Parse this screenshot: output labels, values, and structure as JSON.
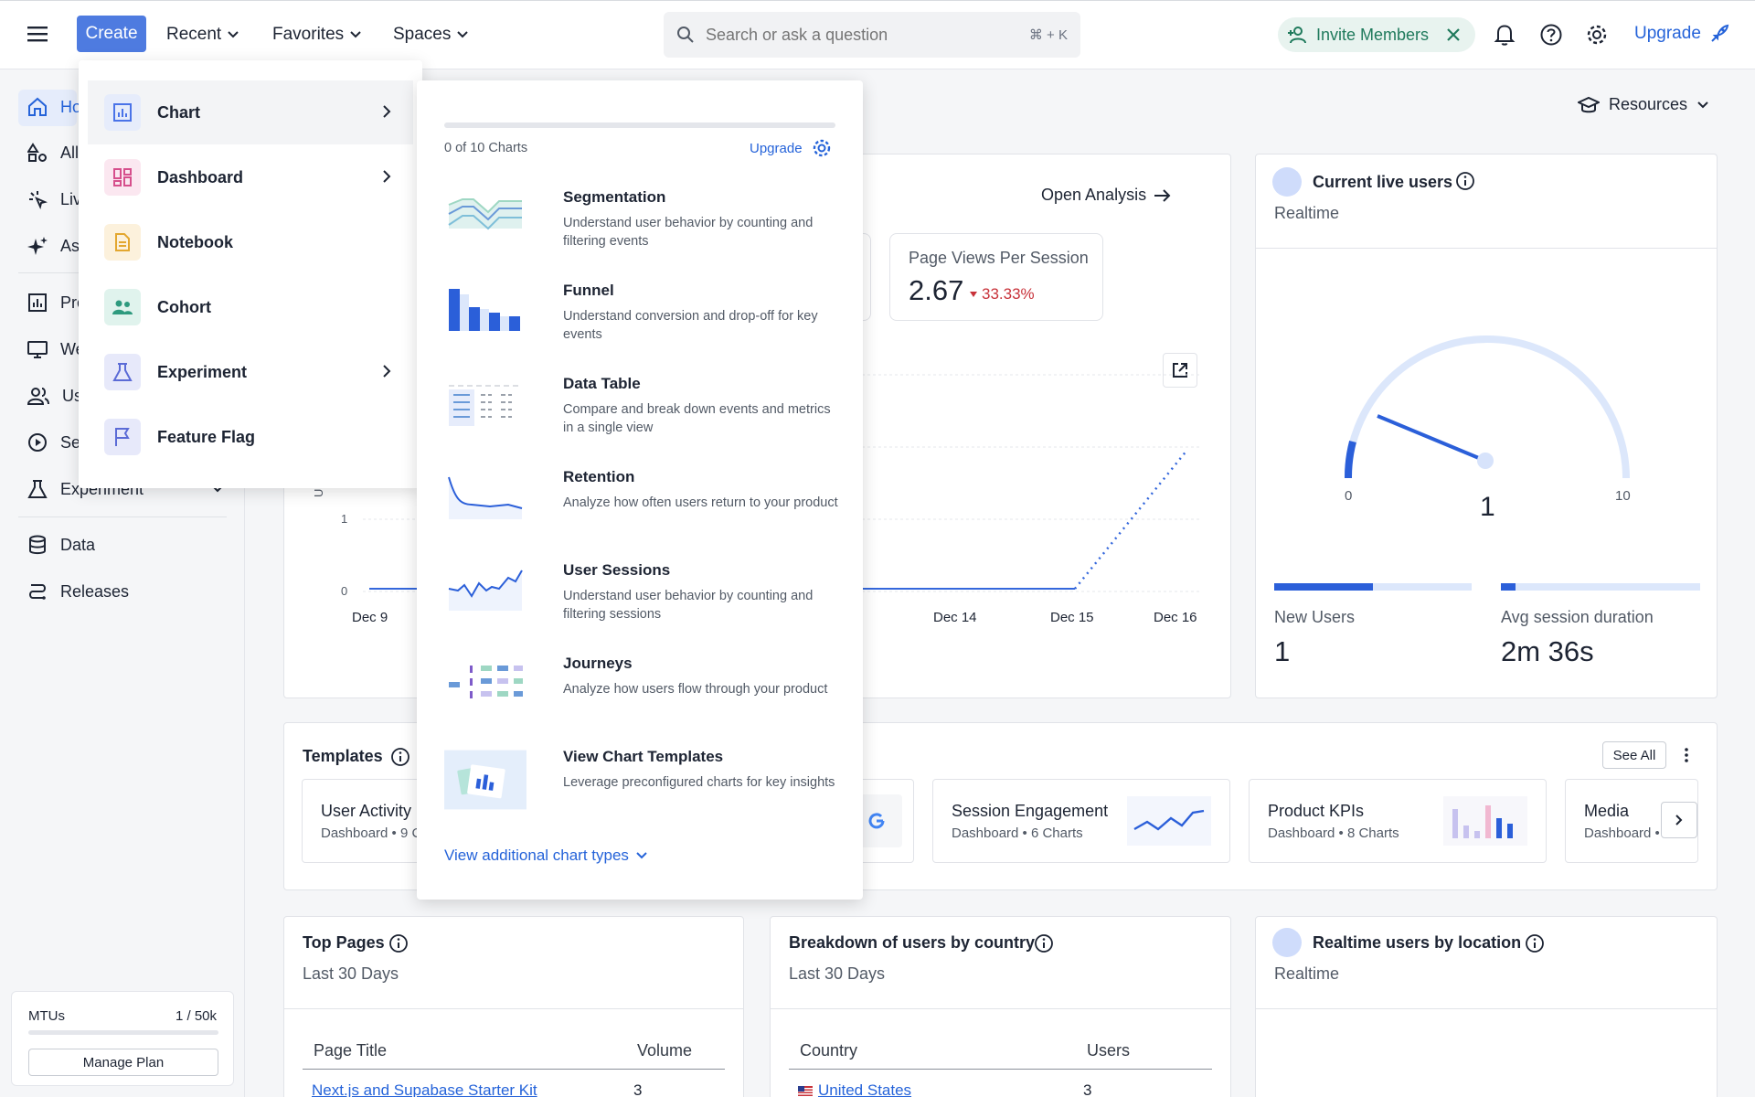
{
  "topbar": {
    "create_label": "Create",
    "recent_label": "Recent",
    "favorites_label": "Favorites",
    "spaces_label": "Spaces",
    "search_placeholder": "Search or ask a question",
    "search_shortcut": "⌘ + K",
    "invite_label": "Invite Members",
    "upgrade_label": "Upgrade"
  },
  "sidebar": {
    "items": [
      {
        "label": "Ho",
        "icon": "home-icon"
      },
      {
        "label": "All",
        "icon": "shapes-icon"
      },
      {
        "label": "Liv",
        "icon": "sparkle-click-icon"
      },
      {
        "label": "As",
        "icon": "sparkles-icon"
      },
      {
        "label": "Pro",
        "icon": "chart-icon"
      },
      {
        "label": "We",
        "icon": "monitor-icon"
      },
      {
        "label": "Us",
        "icon": "users-icon"
      },
      {
        "label": "Se",
        "icon": "play-circle-icon"
      },
      {
        "label": "Experiment",
        "icon": "flask-icon"
      },
      {
        "label": "Data",
        "icon": "database-icon"
      },
      {
        "label": "Releases",
        "icon": "releases-icon"
      }
    ],
    "mtu_label": "MTUs",
    "mtu_value": "1 / 50k",
    "mtu_progress": 2e-05,
    "manage_plan_label": "Manage Plan"
  },
  "create_menu": {
    "items": [
      {
        "label": "Chart",
        "icon": "chart-icon",
        "color": "#4a73e8",
        "bg": "#e6ecfb",
        "submenu": true
      },
      {
        "label": "Dashboard",
        "icon": "dashboard-icon",
        "color": "#d64f8c",
        "bg": "#fbe7f0",
        "submenu": true
      },
      {
        "label": "Notebook",
        "icon": "notebook-icon",
        "color": "#e3a72f",
        "bg": "#fcf1dc",
        "submenu": false
      },
      {
        "label": "Cohort",
        "icon": "cohort-icon",
        "color": "#2e9a7e",
        "bg": "#e0f3ed",
        "submenu": false
      },
      {
        "label": "Experiment",
        "icon": "flask-icon",
        "color": "#5b6bd6",
        "bg": "#e7e9fa",
        "submenu": true
      },
      {
        "label": "Feature Flag",
        "icon": "flag-icon",
        "color": "#5b6bd6",
        "bg": "#e7e9fa",
        "submenu": false
      }
    ]
  },
  "chart_menu": {
    "count_label": "0 of 10 Charts",
    "upgrade_label": "Upgrade",
    "types": [
      {
        "name": "Segmentation",
        "desc": "Understand user behavior by counting and filtering events"
      },
      {
        "name": "Funnel",
        "desc": "Understand conversion and drop-off for key events"
      },
      {
        "name": "Data Table",
        "desc": "Compare and break down events and metrics in a single view"
      },
      {
        "name": "Retention",
        "desc": "Analyze how often users return to your product"
      },
      {
        "name": "User Sessions",
        "desc": "Understand user behavior by counting and filtering sessions"
      },
      {
        "name": "Journeys",
        "desc": "Analyze how users flow through your product"
      },
      {
        "name": "View Chart Templates",
        "desc": "Leverage preconfigured charts for key insights"
      }
    ],
    "more_label": "View additional chart types"
  },
  "header": {
    "resources_label": "Resources"
  },
  "analysis": {
    "open_label": "Open Analysis",
    "stat_label": "Page Views Per Session",
    "stat_value": "2.67",
    "stat_change": "33.33%",
    "y_labels": [
      "1",
      "0"
    ],
    "y_axis_label": "Un",
    "x_labels": [
      "Dec 9",
      "Dec 14",
      "Dec 15",
      "Dec 16"
    ]
  },
  "live_users": {
    "title": "Current live users",
    "subtitle": "Realtime",
    "gauge_min": "0",
    "gauge_max": "10",
    "gauge_value": "1",
    "new_users_label": "New Users",
    "new_users_value": "1",
    "avg_session_label": "Avg session duration",
    "avg_session_value": "2m 36s"
  },
  "templates": {
    "title": "Templates",
    "see_all_label": "See All",
    "items": [
      {
        "title": "User Activity",
        "sub": "Dashboard • 9 C"
      },
      {
        "title": "Session Engagement",
        "sub": "Dashboard • 6 Charts"
      },
      {
        "title": "Product KPIs",
        "sub": "Dashboard • 8 Charts"
      },
      {
        "title": "Media",
        "sub": "Dashboard •"
      }
    ]
  },
  "top_pages": {
    "title": "Top Pages",
    "subtitle": "Last 30 Days",
    "col_title": "Page Title",
    "col_volume": "Volume",
    "row_title": "Next.js and Supabase Starter Kit",
    "row_volume": "3"
  },
  "country": {
    "title": "Breakdown of users by country",
    "subtitle": "Last 30 Days",
    "col_country": "Country",
    "col_users": "Users",
    "row_country": "United States",
    "row_users": "3"
  },
  "location": {
    "title": "Realtime users by location",
    "subtitle": "Realtime"
  }
}
